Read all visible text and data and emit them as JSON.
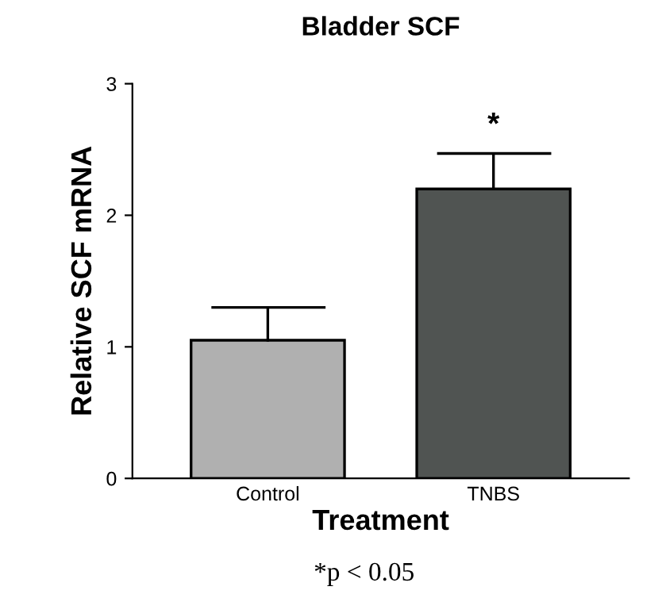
{
  "chart_data": {
    "type": "bar",
    "title": "Bladder SCF",
    "xlabel": "Treatment",
    "ylabel": "Relative SCF mRNA",
    "categories": [
      "Control",
      "TNBS"
    ],
    "values": [
      1.05,
      2.2
    ],
    "errors": [
      [
        1.05,
        1.3
      ],
      [
        2.2,
        2.47
      ]
    ],
    "colors": [
      "#b0b0b0",
      "#505452"
    ],
    "ylim": [
      0,
      3
    ],
    "yticks": [
      0,
      1,
      2,
      3
    ],
    "grid": false,
    "annotations": [
      {
        "text": "*",
        "x": "TNBS",
        "y": 2.47
      },
      "*p < 0.05"
    ]
  }
}
